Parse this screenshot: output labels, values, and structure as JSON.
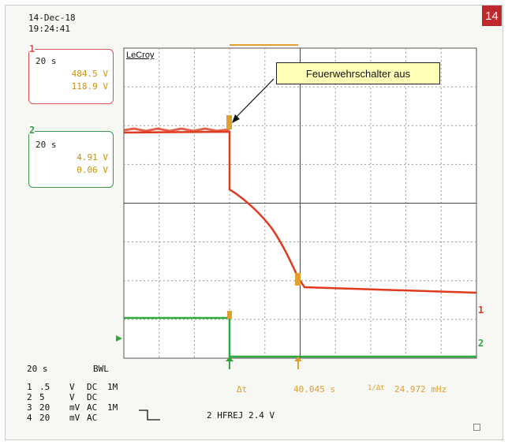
{
  "badge": "14",
  "header": {
    "date": "14-Dec-18",
    "time": "19:24:41"
  },
  "brand": "LeCroy",
  "annotation": "Feuerwehrschalter aus",
  "channels": [
    {
      "id": "1",
      "timebase": "20 s",
      "value1": "484.5 V",
      "value2": "118.9 V",
      "color": "#d9534f"
    },
    {
      "id": "2",
      "timebase": "20 s",
      "value1": "4.91 V",
      "value2": "0.06 V",
      "color": "#3a9a4a"
    }
  ],
  "trace_markers": {
    "ch1": "1",
    "ch2": "2"
  },
  "colors": {
    "ch1_trace": "#e03a1e",
    "ch2_trace": "#2fa83b",
    "cursor": "#e0a030",
    "grid": "#7a7a7a"
  },
  "footer": {
    "timebase": "20 s",
    "bwl": "BWL",
    "rows": [
      {
        "num": "1",
        "volts": ".5",
        "unit": "V",
        "coupling": "DC",
        "extra": "1M"
      },
      {
        "num": "2",
        "volts": "5",
        "unit": "V",
        "coupling": "DC",
        "extra": ""
      },
      {
        "num": "3",
        "volts": "20",
        "unit": "mV",
        "coupling": "AC",
        "extra": "1M"
      },
      {
        "num": "4",
        "volts": "20",
        "unit": "mV",
        "coupling": "AC",
        "extra": ""
      }
    ],
    "delta_t_label": "Δt",
    "delta_t_value": "40.045 s",
    "freq_label": "1/Δt",
    "freq_value": "24.972 mHz",
    "trigger": "2 HFREJ 2.4 V"
  }
}
